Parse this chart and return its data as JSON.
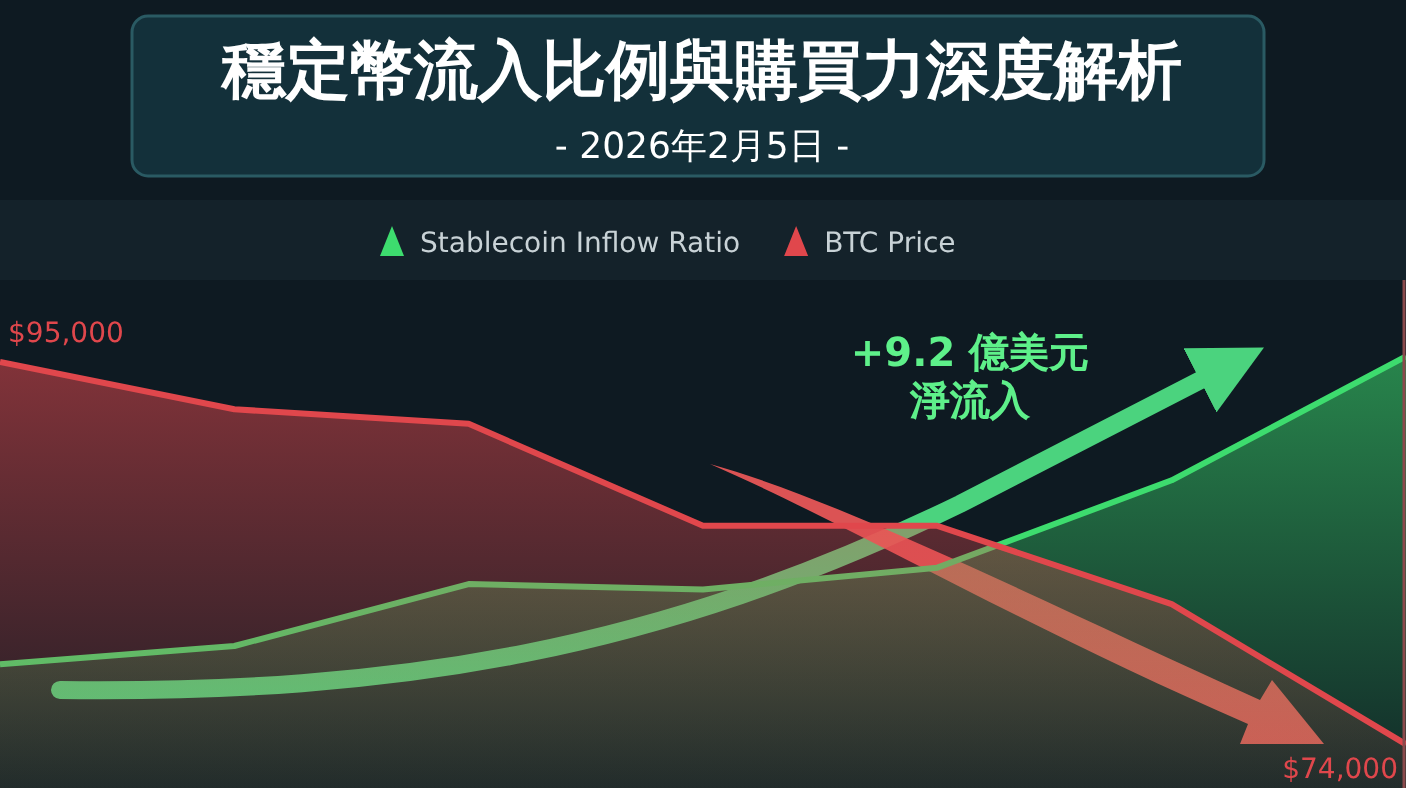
{
  "chart_data": {
    "type": "area",
    "title": "穩定幣流入比例與購買力深度解析",
    "subtitle": "- 2026年2月5日 -",
    "categories": [
      null,
      null,
      null,
      null,
      null,
      null,
      null
    ],
    "series": [
      {
        "name": "Stablecoin Inflow Ratio",
        "color": "#3ddc6e",
        "values": [
          78400,
          79400,
          82800,
          82500,
          83700,
          88500,
          95300
        ]
      },
      {
        "name": "BTC Price",
        "color": "#e0474c",
        "values": [
          95000,
          92400,
          91600,
          86000,
          86000,
          81700,
          74000
        ],
        "value_labels": [
          "$95,000",
          null,
          null,
          null,
          null,
          null,
          "$74,000"
        ]
      }
    ],
    "ylim": [
      71600,
      99500
    ],
    "legend": "top",
    "annotations": [
      "+9.2 億美元",
      "淨流入"
    ]
  }
}
